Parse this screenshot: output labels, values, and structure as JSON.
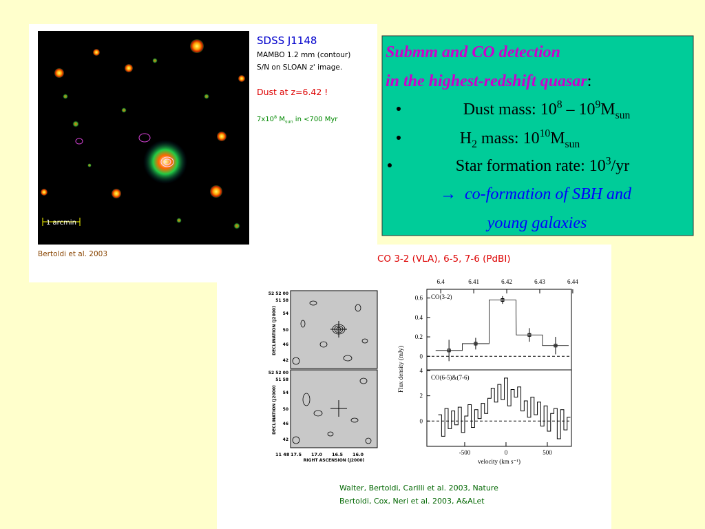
{
  "left_panel": {
    "title": "SDSS J1148",
    "lines": [
      "MAMBO 1.2 mm (contour)",
      "S/N on SLOAN z' image."
    ],
    "highlight": "Dust at z=6.42 !",
    "note": [
      {
        "text": "7x10"
      },
      {
        "text": "8",
        "style": "sup"
      },
      {
        "text": " M"
      },
      {
        "text": "sun",
        "style": "sub"
      },
      {
        "text": " in <700 Myr"
      }
    ],
    "scale_bar": "1 arcmin",
    "credit": "Bertoldi et al. 2003"
  },
  "green_box": {
    "heading": [
      "Submm and CO detection",
      "in the highest-redshift quasar"
    ],
    "colon": ":",
    "bullets": [
      [
        {
          "text": "Dust mass: 10"
        },
        {
          "text": "8",
          "style": "sup"
        },
        {
          "text": " – 10"
        },
        {
          "text": "9",
          "style": "sup"
        },
        {
          "text": "M"
        },
        {
          "text": "sun",
          "style": "sub"
        }
      ],
      [
        {
          "text": "H"
        },
        {
          "text": "2",
          "style": "sub"
        },
        {
          "text": " mass: 10"
        },
        {
          "text": "10",
          "style": "sup"
        },
        {
          "text": "M"
        },
        {
          "text": "sun",
          "style": "sub"
        }
      ],
      [
        {
          "text": "Star formation rate: 10"
        },
        {
          "text": "3",
          "style": "sup"
        },
        {
          "text": "/yr"
        }
      ]
    ],
    "conclusion": {
      "arrow": "→",
      "lines": [
        "co-formation of SBH and",
        "young galaxies"
      ]
    }
  },
  "lower_panel": {
    "title": "CO 3-2 (VLA),  6-5, 7-6 (PdBI)",
    "maps": {
      "y_label": "DECLINATION (J2000)",
      "x_label": "RIGHT ASCENSION (J2000)",
      "yticks": [
        "52 52 00",
        "51 58",
        "54",
        "50",
        "46",
        "42"
      ],
      "x_origin": "11 48",
      "xticks": [
        "17.5",
        "17.0",
        "16.5",
        "16.0"
      ]
    },
    "spectrum": {
      "type": "step",
      "y_label": "Flux density (mJy)",
      "x_label": "velocity (km s⁻¹)",
      "top_axis": {
        "lim": [
          6.3958,
          6.4396
        ],
        "ticks": [
          6.4,
          6.41,
          6.42,
          6.43,
          6.44
        ]
      },
      "xlim": [
        -958,
        792
      ],
      "xticks": [
        -500,
        0,
        500
      ],
      "panels": [
        {
          "label": "CO(3-2)",
          "ylim": [
            -0.14,
            0.69
          ],
          "yticks": [
            0,
            0.2,
            0.4,
            0.6
          ],
          "x": [
            -690,
            -367,
            -42,
            283,
            600
          ],
          "values": [
            0.06,
            0.13,
            0.58,
            0.22,
            0.11
          ],
          "errors": [
            0.11,
            0.06,
            0.04,
            0.07,
            0.09
          ]
        },
        {
          "label": "CO(6-5)&(7-6)",
          "ylim": [
            -2,
            4.05
          ],
          "yticks": [
            0,
            2,
            4
          ],
          "x": [
            -800,
            -760,
            -720,
            -680,
            -640,
            -600,
            -560,
            -520,
            -480,
            -440,
            -400,
            -360,
            -320,
            -280,
            -240,
            -200,
            -160,
            -120,
            -80,
            -40,
            0,
            40,
            80,
            120,
            160,
            200,
            240,
            280,
            320,
            360,
            400,
            440,
            480,
            520,
            560,
            600,
            640,
            680,
            720,
            760
          ],
          "values": [
            0.5,
            -1.2,
            1.0,
            -0.6,
            0.8,
            -0.3,
            1.1,
            -0.9,
            0.4,
            1.3,
            -0.5,
            0.9,
            0.2,
            1.4,
            0.6,
            1.8,
            2.6,
            1.5,
            2.9,
            1.7,
            3.4,
            1.2,
            2.5,
            1.9,
            2.7,
            0.8,
            1.6,
            0.3,
            1.9,
            0.5,
            1.5,
            -0.4,
            1.2,
            -0.8,
            0.6,
            1.0,
            -1.4,
            0.9,
            -0.7,
            0.3
          ]
        }
      ]
    },
    "citations": [
      "Walter, Bertoldi, Carilli et al. 2003, Nature",
      "Bertoldi, Cox, Neri et al. 2003, A&ALet"
    ]
  }
}
